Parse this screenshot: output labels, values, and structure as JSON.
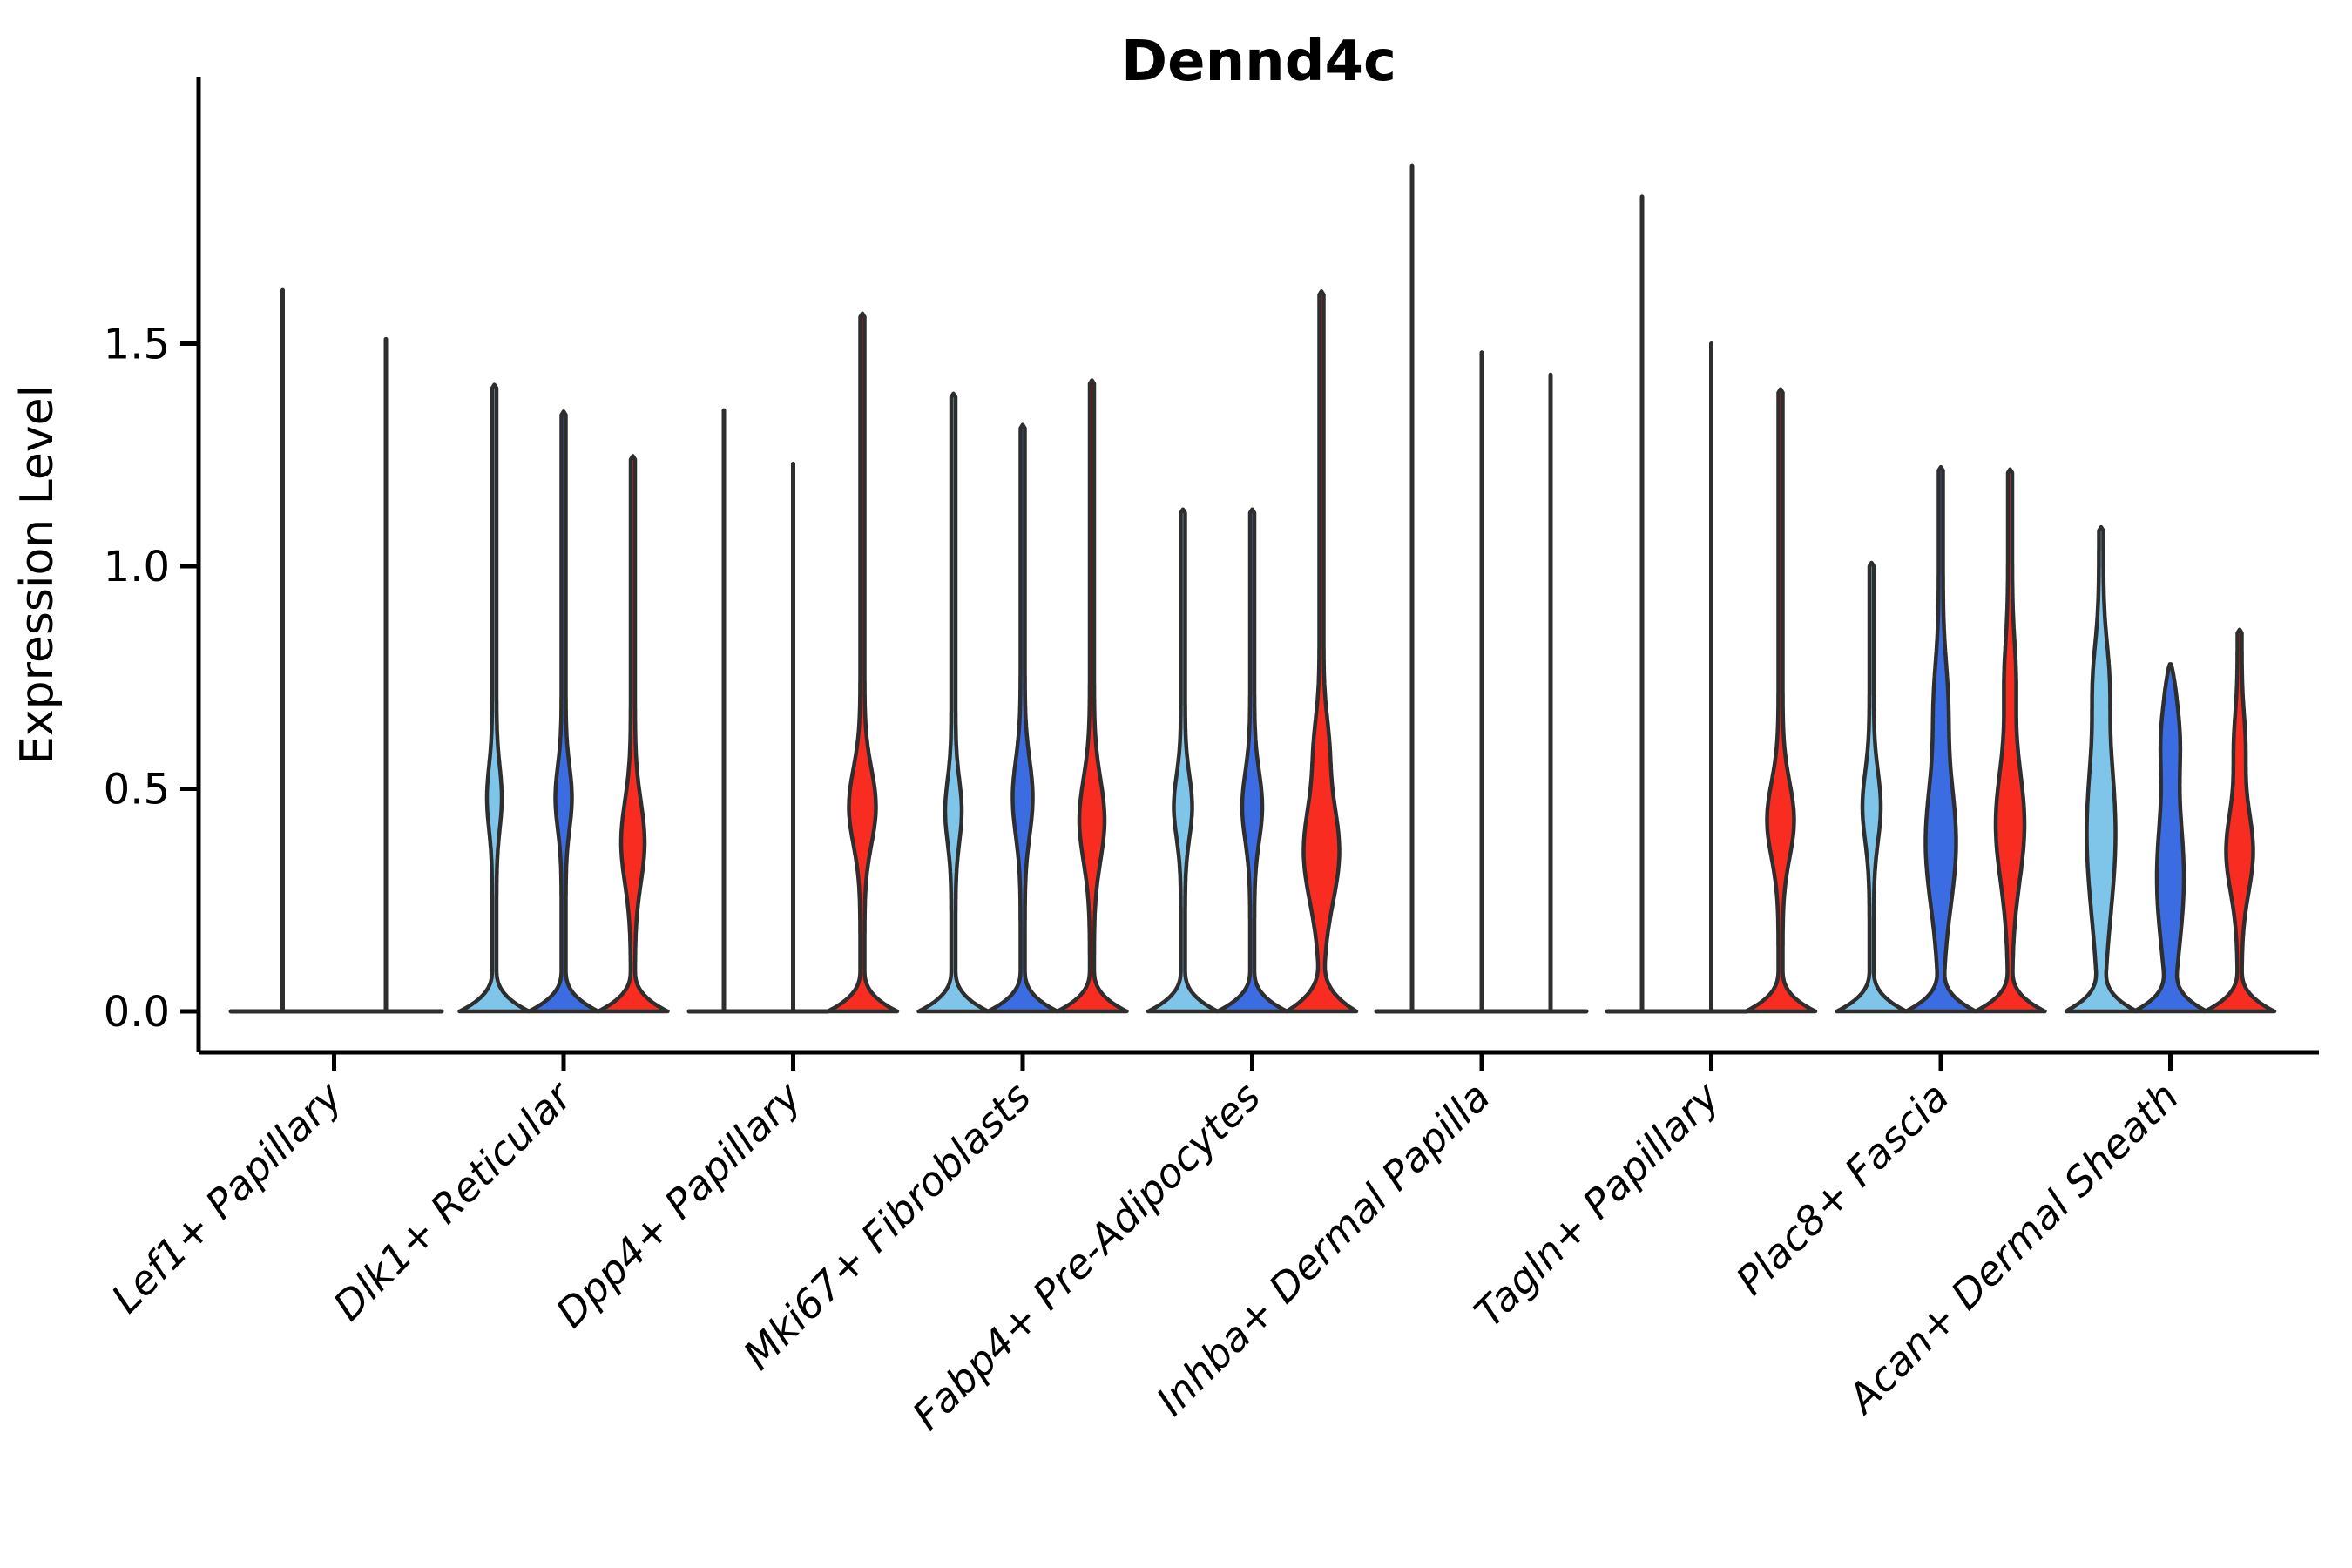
{
  "title": "Dennd4c",
  "axes": {
    "ylabel": "Expression Level",
    "yticks": [
      {
        "value": 0.0,
        "label": "0.0"
      },
      {
        "value": 0.5,
        "label": "0.5"
      },
      {
        "value": 1.0,
        "label": "1.0"
      },
      {
        "value": 1.5,
        "label": "1.5"
      }
    ],
    "ylim": [
      0,
      1.95
    ],
    "grid": false,
    "legend": "none"
  },
  "colors": {
    "light_blue": "#7FC5EA",
    "dark_blue": "#3C6CE1",
    "red": "#F92C22",
    "outline": "#2E2E2E",
    "axis": "#000000"
  },
  "chart_data": {
    "type": "violin",
    "title": "Dennd4c",
    "xlabel": "",
    "ylabel": "Expression Level",
    "categories": [
      "Lef1+ Papillary",
      "Dlk1+ Reticular",
      "Dpp4+ Papillary",
      "Mki67+ Fibroblasts",
      "Fabp4+ Pre-Adipocytes",
      "Inhba+ Dermal Papilla",
      "Tagln+ Papillary",
      "Plac8+ Fascia",
      "Acan+ Dermal Sheath"
    ],
    "hues": [
      {
        "name": "light-blue",
        "color": "#7FC5EA"
      },
      {
        "name": "dark-blue",
        "color": "#3C6CE1"
      },
      {
        "name": "red",
        "color": "#F92C22"
      }
    ],
    "groups": [
      {
        "category": "Lef1+ Papillary",
        "baseline_extent": [
          265,
          507
        ],
        "violins": [
          {
            "hue": "none",
            "flat": true,
            "dx": -59,
            "max": 1.62
          },
          {
            "hue": "none",
            "flat": true,
            "dx": 59.5,
            "max": 1.51
          }
        ]
      },
      {
        "category": "Dlk1+ Reticular",
        "baseline_extent": null,
        "violins": [
          {
            "hue": "light-blue",
            "dx": -79.5,
            "max": 1.4,
            "bulges": [
              {
                "c": 0.48,
                "hw": 6,
                "sig": 0.1
              }
            ]
          },
          {
            "hue": "dark-blue",
            "dx": 0,
            "max": 1.34,
            "bulges": [
              {
                "c": 0.48,
                "hw": 7,
                "sig": 0.1
              }
            ]
          },
          {
            "hue": "red",
            "dx": 79.5,
            "max": 1.24,
            "bulges": [
              {
                "c": 0.38,
                "hw": 11,
                "sig": 0.13
              }
            ]
          }
        ]
      },
      {
        "category": "Dpp4+ Papillary",
        "baseline_extent": [
          791,
          950
        ],
        "violins": [
          {
            "hue": "none",
            "flat": true,
            "dx": -79.5,
            "max": 1.35
          },
          {
            "hue": "none",
            "flat": true,
            "dx": 0,
            "max": 1.23
          },
          {
            "hue": "red",
            "dx": 79.5,
            "max": 1.56,
            "bulges": [
              {
                "c": 0.46,
                "hw": 13,
                "sig": 0.12
              }
            ]
          }
        ]
      },
      {
        "category": "Mki67+ Fibroblasts",
        "baseline_extent": null,
        "violins": [
          {
            "hue": "light-blue",
            "dx": -79.5,
            "max": 1.38,
            "bulges": [
              {
                "c": 0.45,
                "hw": 7,
                "sig": 0.1
              }
            ]
          },
          {
            "hue": "dark-blue",
            "dx": 0,
            "max": 1.31,
            "bulges": [
              {
                "c": 0.48,
                "hw": 9,
                "sig": 0.12
              }
            ]
          },
          {
            "hue": "red",
            "dx": 79.5,
            "max": 1.41,
            "bulges": [
              {
                "c": 0.43,
                "hw": 12,
                "sig": 0.13
              }
            ]
          }
        ]
      },
      {
        "category": "Fabp4+ Pre-Adipocytes",
        "baseline_extent": null,
        "violins": [
          {
            "hue": "light-blue",
            "dx": -79.5,
            "max": 1.12,
            "bulges": [
              {
                "c": 0.46,
                "hw": 8,
                "sig": 0.1
              }
            ]
          },
          {
            "hue": "dark-blue",
            "dx": 0,
            "max": 1.12,
            "bulges": [
              {
                "c": 0.46,
                "hw": 9,
                "sig": 0.11
              }
            ]
          },
          {
            "hue": "red",
            "dx": 79.5,
            "max": 1.61,
            "pancake_h": 0.115,
            "bulges": [
              {
                "c": 0.36,
                "hw": 18,
                "sig": 0.16
              },
              {
                "c": 0.6,
                "hw": 5,
                "sig": 0.1
              }
            ]
          }
        ]
      },
      {
        "category": "Inhba+ Dermal Papilla",
        "baseline_extent": [
          1580,
          1821
        ],
        "violins": [
          {
            "hue": "none",
            "flat": true,
            "dx": -80,
            "max": 1.9
          },
          {
            "hue": "none",
            "flat": true,
            "dx": 0,
            "max": 1.48
          },
          {
            "hue": "none",
            "flat": true,
            "dx": 79,
            "max": 1.43
          }
        ]
      },
      {
        "category": "Tagln+ Papillary",
        "baseline_extent": [
          1845,
          2005
        ],
        "violins": [
          {
            "hue": "none",
            "flat": true,
            "dx": -79.5,
            "max": 1.83
          },
          {
            "hue": "none",
            "flat": true,
            "dx": 0,
            "max": 1.5
          },
          {
            "hue": "red",
            "dx": 79.5,
            "max": 1.39,
            "bulges": [
              {
                "c": 0.43,
                "hw": 13,
                "sig": 0.12
              }
            ]
          }
        ]
      },
      {
        "category": "Plac8+ Fascia",
        "baseline_extent": null,
        "violins": [
          {
            "hue": "light-blue",
            "dx": -79.5,
            "max": 1.0,
            "bulges": [
              {
                "c": 0.46,
                "hw": 8,
                "sig": 0.11
              }
            ]
          },
          {
            "hue": "dark-blue",
            "dx": 0,
            "max": 1.215,
            "bulges": [
              {
                "c": 0.38,
                "hw": 15,
                "sig": 0.2
              },
              {
                "c": 0.7,
                "hw": 5,
                "sig": 0.13
              }
            ]
          },
          {
            "hue": "red",
            "dx": 79.5,
            "max": 1.21,
            "bulges": [
              {
                "c": 0.42,
                "hw": 14,
                "sig": 0.18
              },
              {
                "c": 0.75,
                "hw": 4,
                "sig": 0.12
              }
            ]
          }
        ]
      },
      {
        "category": "Acan+ Dermal Sheath",
        "baseline_extent": null,
        "violins": [
          {
            "hue": "light-blue",
            "dx": -79.5,
            "max": 1.08,
            "bulges": [
              {
                "c": 0.4,
                "hw": 14,
                "sig": 0.26
              },
              {
                "c": 0.75,
                "hw": 5,
                "sig": 0.12
              }
            ]
          },
          {
            "hue": "dark-blue",
            "dx": 0,
            "max": 0.78,
            "blunt": true,
            "bulges": [
              {
                "c": 0.3,
                "hw": 13,
                "sig": 0.22
              },
              {
                "c": 0.62,
                "hw": 7,
                "sig": 0.12
              }
            ]
          },
          {
            "hue": "red",
            "dx": 79.5,
            "max": 0.85,
            "bulges": [
              {
                "c": 0.36,
                "hw": 13,
                "sig": 0.13
              },
              {
                "c": 0.6,
                "hw": 4,
                "sig": 0.1
              }
            ]
          }
        ]
      }
    ]
  }
}
